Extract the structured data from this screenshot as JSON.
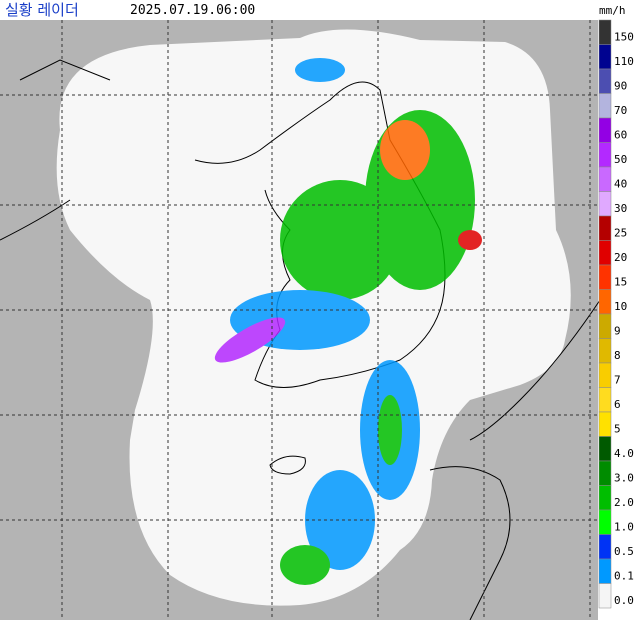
{
  "header": {
    "title": "실황 레이더",
    "time": "2025.07.19.06:00",
    "unit": "mm/h"
  },
  "legend": [
    {
      "label": "150",
      "color": "#333333"
    },
    {
      "label": "110",
      "color": "#000390"
    },
    {
      "label": "90",
      "color": "#4c4eb1"
    },
    {
      "label": "70",
      "color": "#b3b4de"
    },
    {
      "label": "60",
      "color": "#9300e4"
    },
    {
      "label": "50",
      "color": "#b329ff"
    },
    {
      "label": "40",
      "color": "#c969ff"
    },
    {
      "label": "30",
      "color": "#e0a9ff"
    },
    {
      "label": "25",
      "color": "#b40000"
    },
    {
      "label": "20",
      "color": "#e00000"
    },
    {
      "label": "15",
      "color": "#ff3300"
    },
    {
      "label": "10",
      "color": "#ff6600"
    },
    {
      "label": "9",
      "color": "#ccaa00"
    },
    {
      "label": "8",
      "color": "#e0b900"
    },
    {
      "label": "7",
      "color": "#f9cd00"
    },
    {
      "label": "6",
      "color": "#ffdc1f"
    },
    {
      "label": "5",
      "color": "#ffe100"
    },
    {
      "label": "4.0",
      "color": "#005a00"
    },
    {
      "label": "3.0",
      "color": "#008c00"
    },
    {
      "label": "2.0",
      "color": "#00be00"
    },
    {
      "label": "1.0",
      "color": "#00ff00"
    },
    {
      "label": "0.5",
      "color": "#0033f5"
    },
    {
      "label": "0.1",
      "color": "#0099ff"
    },
    {
      "label": "0.0",
      "color": "#f5f5f5"
    }
  ]
}
